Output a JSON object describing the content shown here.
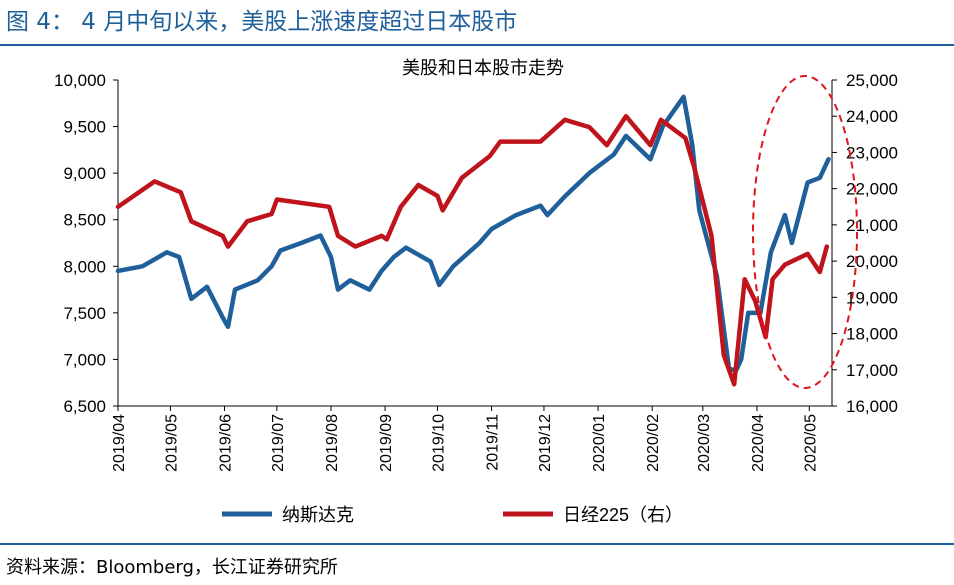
{
  "figure": {
    "title": "图 4：  4 月中旬以来，美股上涨速度超过日本股市",
    "source": "资料来源：Bloomberg，长江证券研究所"
  },
  "chart_data": {
    "type": "line",
    "title": "美股和日本股市走势",
    "x_ticks": [
      "2019/04",
      "2019/05",
      "2019/06",
      "2019/07",
      "2019/08",
      "2019/09",
      "2019/10",
      "2019/11",
      "2019/12",
      "2020/01",
      "2020/02",
      "2020/03",
      "2020/04",
      "2020/05"
    ],
    "y_left": {
      "range": [
        6500,
        10000
      ],
      "ticks": [
        "6,500",
        "7,000",
        "7,500",
        "8,000",
        "8,500",
        "9,000",
        "9,500",
        "10,000"
      ]
    },
    "y_right": {
      "range": [
        16000,
        25000
      ],
      "ticks": [
        "16,000",
        "17,000",
        "18,000",
        "19,000",
        "20,000",
        "21,000",
        "22,000",
        "23,000",
        "24,000",
        "25,000"
      ]
    },
    "legend_position": "bottom",
    "grid": false,
    "series": [
      {
        "name": "纳斯达克",
        "axis": "left",
        "color": "#1f5f9a",
        "points": [
          [
            "2019-04-01",
            7950
          ],
          [
            "2019-04-15",
            8000
          ],
          [
            "2019-04-29",
            8150
          ],
          [
            "2019-05-06",
            8100
          ],
          [
            "2019-05-13",
            7650
          ],
          [
            "2019-05-22",
            7780
          ],
          [
            "2019-05-31",
            7450
          ],
          [
            "2019-06-03",
            7350
          ],
          [
            "2019-06-07",
            7750
          ],
          [
            "2019-06-20",
            7850
          ],
          [
            "2019-06-28",
            8000
          ],
          [
            "2019-07-03",
            8170
          ],
          [
            "2019-07-15",
            8250
          ],
          [
            "2019-07-26",
            8330
          ],
          [
            "2019-08-01",
            8100
          ],
          [
            "2019-08-05",
            7750
          ],
          [
            "2019-08-12",
            7850
          ],
          [
            "2019-08-23",
            7750
          ],
          [
            "2019-08-30",
            7950
          ],
          [
            "2019-09-06",
            8100
          ],
          [
            "2019-09-13",
            8200
          ],
          [
            "2019-09-27",
            8050
          ],
          [
            "2019-10-02",
            7800
          ],
          [
            "2019-10-10",
            8000
          ],
          [
            "2019-10-25",
            8250
          ],
          [
            "2019-11-01",
            8400
          ],
          [
            "2019-11-15",
            8550
          ],
          [
            "2019-11-29",
            8650
          ],
          [
            "2019-12-03",
            8550
          ],
          [
            "2019-12-13",
            8750
          ],
          [
            "2019-12-27",
            9000
          ],
          [
            "2020-01-10",
            9200
          ],
          [
            "2020-01-17",
            9400
          ],
          [
            "2020-01-31",
            9150
          ],
          [
            "2020-02-07",
            9500
          ],
          [
            "2020-02-19",
            9820
          ],
          [
            "2020-02-24",
            9300
          ],
          [
            "2020-02-28",
            8600
          ],
          [
            "2020-03-09",
            7900
          ],
          [
            "2020-03-16",
            6900
          ],
          [
            "2020-03-20",
            6880
          ],
          [
            "2020-03-23",
            7000
          ],
          [
            "2020-03-27",
            7500
          ],
          [
            "2020-04-03",
            7500
          ],
          [
            "2020-04-09",
            8150
          ],
          [
            "2020-04-17",
            8550
          ],
          [
            "2020-04-21",
            8250
          ],
          [
            "2020-04-30",
            8900
          ],
          [
            "2020-05-07",
            8950
          ],
          [
            "2020-05-12",
            9150
          ]
        ]
      },
      {
        "name": "日经225（右）",
        "axis": "right",
        "color": "#c0141c",
        "points": [
          [
            "2019-04-01",
            21500
          ],
          [
            "2019-04-22",
            22200
          ],
          [
            "2019-05-07",
            21900
          ],
          [
            "2019-05-13",
            21100
          ],
          [
            "2019-05-31",
            20700
          ],
          [
            "2019-06-03",
            20400
          ],
          [
            "2019-06-14",
            21100
          ],
          [
            "2019-06-28",
            21300
          ],
          [
            "2019-07-01",
            21700
          ],
          [
            "2019-07-31",
            21500
          ],
          [
            "2019-08-05",
            20700
          ],
          [
            "2019-08-15",
            20400
          ],
          [
            "2019-08-30",
            20700
          ],
          [
            "2019-09-02",
            20600
          ],
          [
            "2019-09-10",
            21500
          ],
          [
            "2019-09-20",
            22100
          ],
          [
            "2019-10-01",
            21800
          ],
          [
            "2019-10-04",
            21400
          ],
          [
            "2019-10-15",
            22300
          ],
          [
            "2019-10-31",
            22900
          ],
          [
            "2019-11-06",
            23300
          ],
          [
            "2019-11-29",
            23300
          ],
          [
            "2019-12-13",
            23900
          ],
          [
            "2019-12-27",
            23700
          ],
          [
            "2020-01-06",
            23200
          ],
          [
            "2020-01-17",
            24000
          ],
          [
            "2020-01-31",
            23200
          ],
          [
            "2020-02-06",
            23900
          ],
          [
            "2020-02-20",
            23400
          ],
          [
            "2020-02-25",
            22600
          ],
          [
            "2020-03-06",
            20700
          ],
          [
            "2020-03-13",
            17400
          ],
          [
            "2020-03-19",
            16600
          ],
          [
            "2020-03-25",
            19500
          ],
          [
            "2020-03-31",
            18900
          ],
          [
            "2020-04-06",
            17900
          ],
          [
            "2020-04-10",
            19500
          ],
          [
            "2020-04-17",
            19900
          ],
          [
            "2020-04-30",
            20200
          ],
          [
            "2020-05-07",
            19700
          ],
          [
            "2020-05-11",
            20400
          ]
        ]
      }
    ]
  },
  "annotation": {
    "shape": "dashed-ellipse",
    "color": "#e0141c",
    "region": "2020/04–2020/05"
  }
}
